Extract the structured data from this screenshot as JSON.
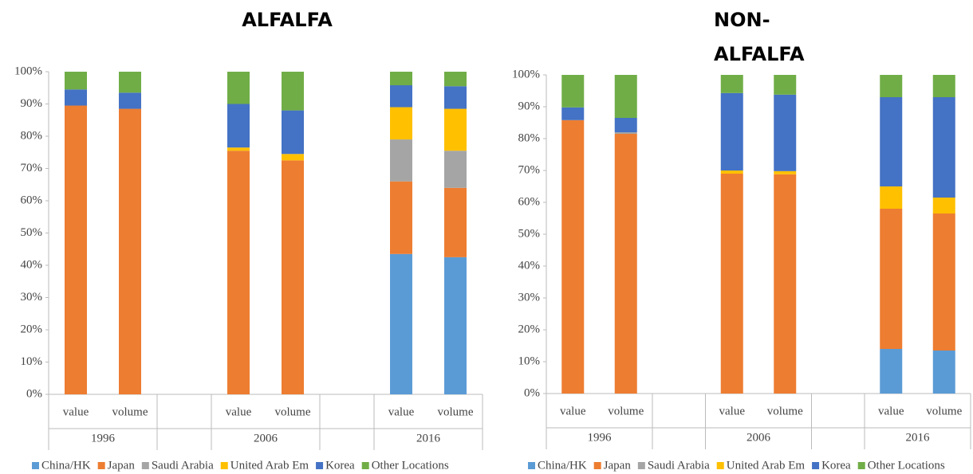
{
  "chart_data": [
    {
      "type": "stacked_bar",
      "title": "ALFALFA",
      "categories": [
        "value",
        "volume",
        null,
        "value",
        "volume",
        null,
        "value",
        "volume"
      ],
      "groups": [
        {
          "label": "1996",
          "size": 2
        },
        {
          "label": null,
          "size": 1
        },
        {
          "label": "2006",
          "size": 2
        },
        {
          "label": null,
          "size": 1
        },
        {
          "label": "2016",
          "size": 2
        }
      ],
      "series": [
        {
          "name": "China/HK",
          "color": "#5b9bd5",
          "values": [
            0,
            0,
            null,
            0,
            0,
            null,
            43.5,
            42.5
          ]
        },
        {
          "name": "Japan",
          "color": "#ed7d31",
          "values": [
            89.5,
            88.5,
            null,
            75.5,
            72.5,
            null,
            22.5,
            21.5
          ]
        },
        {
          "name": "Saudi Arabia",
          "color": "#a5a5a5",
          "values": [
            0,
            0,
            null,
            0,
            0,
            null,
            13,
            11.5
          ]
        },
        {
          "name": "United Arab Em",
          "color": "#ffc000",
          "values": [
            0,
            0,
            null,
            1,
            2,
            null,
            10,
            13
          ]
        },
        {
          "name": "Korea",
          "color": "#4472c4",
          "values": [
            5,
            5,
            null,
            13.5,
            13.5,
            null,
            6.8,
            7
          ]
        },
        {
          "name": "Other Locations",
          "color": "#70ad47",
          "values": [
            5.5,
            6.5,
            null,
            10,
            12,
            null,
            4.2,
            4.5
          ]
        }
      ],
      "ylim": [
        0,
        100
      ],
      "yticks": [
        {
          "value": 0,
          "label": "0%"
        },
        {
          "value": 10,
          "label": "10%"
        },
        {
          "value": 20,
          "label": "20%"
        },
        {
          "value": 30,
          "label": "30%"
        },
        {
          "value": 40,
          "label": "40%"
        },
        {
          "value": 50,
          "label": "50%"
        },
        {
          "value": 60,
          "label": "60%"
        },
        {
          "value": 70,
          "label": "70%"
        },
        {
          "value": 80,
          "label": "80%"
        },
        {
          "value": 90,
          "label": "90%"
        },
        {
          "value": 100,
          "label": "100%"
        }
      ],
      "legend": "bottom"
    },
    {
      "type": "stacked_bar",
      "title": "NON-ALFALFA",
      "categories": [
        "value",
        "volume",
        null,
        "value",
        "volume",
        null,
        "value",
        "volume"
      ],
      "groups": [
        {
          "label": "1996",
          "size": 2
        },
        {
          "label": null,
          "size": 1
        },
        {
          "label": "2006",
          "size": 2
        },
        {
          "label": null,
          "size": 1
        },
        {
          "label": "2016",
          "size": 2
        }
      ],
      "series": [
        {
          "name": "China/HK",
          "color": "#5b9bd5",
          "values": [
            0,
            0,
            null,
            0,
            0,
            null,
            14,
            13.5
          ]
        },
        {
          "name": "Japan",
          "color": "#ed7d31",
          "values": [
            85.8,
            81.5,
            null,
            69,
            68.8,
            null,
            44,
            43
          ]
        },
        {
          "name": "Saudi Arabia",
          "color": "#a5a5a5",
          "values": [
            0,
            0.5,
            null,
            0,
            0,
            null,
            0,
            0
          ]
        },
        {
          "name": "United Arab Em",
          "color": "#ffc000",
          "values": [
            0,
            0,
            null,
            1,
            1,
            null,
            7,
            5
          ]
        },
        {
          "name": "Korea",
          "color": "#4472c4",
          "values": [
            4,
            4.5,
            null,
            24.3,
            24,
            null,
            28,
            31.5
          ]
        },
        {
          "name": "Other Locations",
          "color": "#70ad47",
          "values": [
            10.2,
            13.5,
            null,
            5.7,
            6.2,
            null,
            7,
            7
          ]
        }
      ],
      "ylim": [
        0,
        100
      ],
      "yticks": [
        {
          "value": 0,
          "label": "0%"
        },
        {
          "value": 10,
          "label": "10%"
        },
        {
          "value": 20,
          "label": "20%"
        },
        {
          "value": 30,
          "label": "30%"
        },
        {
          "value": 40,
          "label": "40%"
        },
        {
          "value": 50,
          "label": "50%"
        },
        {
          "value": 60,
          "label": "60%"
        },
        {
          "value": 70,
          "label": "70%"
        },
        {
          "value": 80,
          "label": "80%"
        },
        {
          "value": 90,
          "label": "90%"
        },
        {
          "value": 100,
          "label": "100%"
        }
      ],
      "legend": "bottom"
    }
  ]
}
